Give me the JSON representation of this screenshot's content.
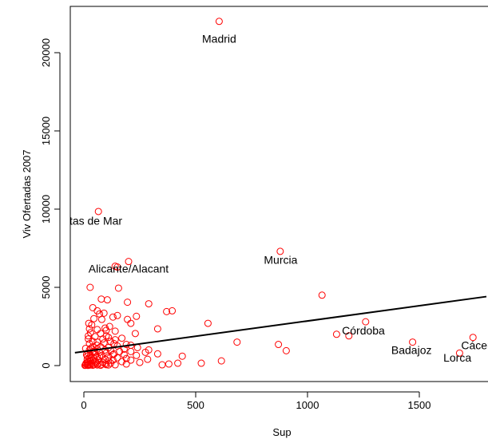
{
  "chart_data": {
    "type": "scatter",
    "title": "",
    "xlabel": "Sup",
    "ylabel": "Viv Ofertadas 2007",
    "xlim": [
      -40,
      1800
    ],
    "ylim": [
      -500,
      23000
    ],
    "x_ticks": [
      0,
      500,
      1000,
      1500
    ],
    "y_ticks": [
      0,
      5000,
      10000,
      15000,
      20000
    ],
    "x_tick_labels": [
      "0",
      "500",
      "1000",
      "1500"
    ],
    "y_tick_labels": [
      "0",
      "5000",
      "10000",
      "15000",
      "20000"
    ],
    "grid": false,
    "legend": "none",
    "point_color": "#ff0000",
    "line_color": "#000000",
    "regression_line": {
      "intercept": 900,
      "slope": 1.95
    },
    "labels": [
      {
        "text": "Madrid",
        "x": 605,
        "y": 20900
      },
      {
        "text": "Roquetas de Mar",
        "x": -20,
        "y": 9250
      },
      {
        "text": "Alicante/Alacant",
        "x": 200,
        "y": 6200
      },
      {
        "text": "Murcia",
        "x": 880,
        "y": 6750
      },
      {
        "text": "Córdoba",
        "x": 1250,
        "y": 2250
      },
      {
        "text": "Badajoz",
        "x": 1465,
        "y": 1000
      },
      {
        "text": "Cáceres",
        "x": 1780,
        "y": 1300
      },
      {
        "text": "Lorca",
        "x": 1670,
        "y": 500
      }
    ],
    "series": [
      {
        "points": [
          [
            605,
            22000
          ],
          [
            65,
            9850
          ],
          [
            878,
            7300
          ],
          [
            200,
            6650
          ],
          [
            140,
            6350
          ],
          [
            150,
            6300
          ],
          [
            28,
            5000
          ],
          [
            155,
            4950
          ],
          [
            1065,
            4500
          ],
          [
            78,
            4250
          ],
          [
            105,
            4200
          ],
          [
            195,
            4050
          ],
          [
            290,
            3950
          ],
          [
            40,
            3700
          ],
          [
            60,
            3500
          ],
          [
            90,
            3350
          ],
          [
            370,
            3450
          ],
          [
            395,
            3500
          ],
          [
            70,
            3300
          ],
          [
            150,
            3200
          ],
          [
            235,
            3150
          ],
          [
            130,
            3100
          ],
          [
            45,
            3000
          ],
          [
            80,
            2950
          ],
          [
            195,
            2950
          ],
          [
            1260,
            2800
          ],
          [
            210,
            2700
          ],
          [
            555,
            2700
          ],
          [
            35,
            2600
          ],
          [
            115,
            2500
          ],
          [
            95,
            2400
          ],
          [
            25,
            2350
          ],
          [
            330,
            2350
          ],
          [
            60,
            2300
          ],
          [
            100,
            2250
          ],
          [
            140,
            2200
          ],
          [
            30,
            2100
          ],
          [
            75,
            2050
          ],
          [
            230,
            2050
          ],
          [
            1130,
            2000
          ],
          [
            1185,
            1900
          ],
          [
            20,
            1900
          ],
          [
            50,
            1850
          ],
          [
            110,
            1800
          ],
          [
            170,
            1750
          ],
          [
            20,
            1700
          ],
          [
            85,
            1700
          ],
          [
            140,
            1650
          ],
          [
            1740,
            1800
          ],
          [
            1470,
            1500
          ],
          [
            685,
            1500
          ],
          [
            40,
            1550
          ],
          [
            120,
            1550
          ],
          [
            60,
            1500
          ],
          [
            90,
            1450
          ],
          [
            25,
            1400
          ],
          [
            135,
            1400
          ],
          [
            190,
            1350
          ],
          [
            870,
            1350
          ],
          [
            210,
            1300
          ],
          [
            150,
            1250
          ],
          [
            40,
            1200
          ],
          [
            75,
            1200
          ],
          [
            110,
            1150
          ],
          [
            240,
            1150
          ],
          [
            30,
            1100
          ],
          [
            60,
            1050
          ],
          [
            180,
            1050
          ],
          [
            25,
            1000
          ],
          [
            95,
            1000
          ],
          [
            905,
            950
          ],
          [
            290,
            1000
          ],
          [
            120,
            950
          ],
          [
            40,
            900
          ],
          [
            160,
            900
          ],
          [
            210,
            900
          ],
          [
            70,
            850
          ],
          [
            275,
            850
          ],
          [
            1680,
            800
          ],
          [
            20,
            800
          ],
          [
            100,
            800
          ],
          [
            135,
            750
          ],
          [
            330,
            750
          ],
          [
            50,
            700
          ],
          [
            180,
            700
          ],
          [
            30,
            650
          ],
          [
            80,
            650
          ],
          [
            235,
            650
          ],
          [
            440,
            600
          ],
          [
            15,
            600
          ],
          [
            110,
            550
          ],
          [
            60,
            550
          ],
          [
            150,
            500
          ],
          [
            25,
            500
          ],
          [
            190,
            450
          ],
          [
            285,
            400
          ],
          [
            45,
            450
          ],
          [
            95,
            400
          ],
          [
            15,
            400
          ],
          [
            130,
            350
          ],
          [
            210,
            350
          ],
          [
            65,
            350
          ],
          [
            615,
            300
          ],
          [
            30,
            300
          ],
          [
            110,
            300
          ],
          [
            170,
            250
          ],
          [
            20,
            250
          ],
          [
            50,
            250
          ],
          [
            85,
            200
          ],
          [
            525,
            150
          ],
          [
            420,
            150
          ],
          [
            250,
            200
          ],
          [
            15,
            200
          ],
          [
            35,
            150
          ],
          [
            120,
            150
          ],
          [
            190,
            100
          ],
          [
            60,
            100
          ],
          [
            10,
            100
          ],
          [
            25,
            80
          ],
          [
            80,
            80
          ],
          [
            45,
            60
          ],
          [
            100,
            60
          ],
          [
            15,
            50
          ],
          [
            140,
            50
          ],
          [
            30,
            40
          ],
          [
            60,
            40
          ],
          [
            8,
            30
          ],
          [
            22,
            20
          ],
          [
            40,
            20
          ],
          [
            75,
            20
          ],
          [
            5,
            10
          ],
          [
            18,
            10
          ],
          [
            350,
            50
          ],
          [
            380,
            100
          ],
          [
            110,
            40
          ],
          [
            95,
            120
          ],
          [
            55,
            180
          ],
          [
            10,
            150
          ],
          [
            32,
            500
          ],
          [
            12,
            700
          ],
          [
            48,
            900
          ],
          [
            8,
            1100
          ],
          [
            58,
            1300
          ],
          [
            100,
            1900
          ],
          [
            22,
            2700
          ],
          [
            70,
            600
          ],
          [
            42,
            350
          ],
          [
            130,
            700
          ]
        ]
      }
    ]
  }
}
